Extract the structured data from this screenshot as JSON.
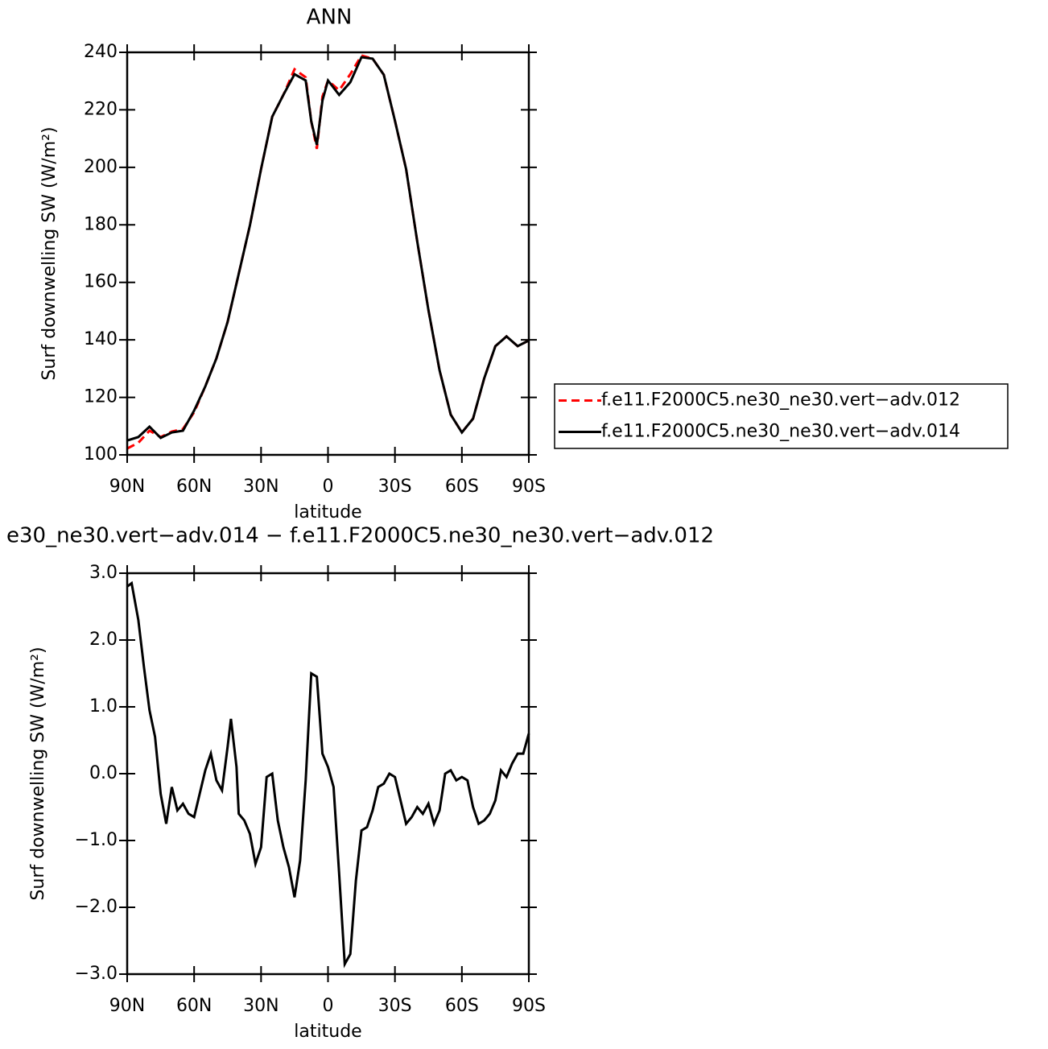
{
  "chart_data": [
    {
      "type": "line",
      "title": "ANN",
      "xlabel": "latitude",
      "ylabel": "Surf downwelling SW (W/m²)",
      "x": [
        90,
        85,
        80,
        75,
        70,
        65,
        60,
        55,
        50,
        45,
        40,
        35,
        30,
        25,
        20,
        15,
        10,
        7.5,
        5,
        2.5,
        0,
        -5,
        -10,
        -15,
        -20,
        -25,
        -30,
        -35,
        -40,
        -45,
        -50,
        -55,
        -60,
        -65,
        -70,
        -75,
        -80,
        -85,
        -90
      ],
      "series": [
        {
          "name": "f.e11.F2000C5.ne30_ne30.vert−adv.012",
          "color": "#ff0000",
          "linestyle": "dashed",
          "values": [
            102.2,
            104.2,
            108.4,
            106.2,
            108.1,
            109,
            114.8,
            123.8,
            133.6,
            146.2,
            163,
            179.8,
            199.4,
            217.6,
            225.2,
            234.1,
            231.3,
            216,
            206.4,
            224.6,
            230.2,
            226.8,
            232.4,
            238.9,
            237.8,
            232.2,
            216.2,
            199.4,
            174.2,
            150.4,
            129.4,
            114,
            107.8,
            112.6,
            126.6,
            137.8,
            141.2,
            137.8,
            139.8
          ]
        },
        {
          "name": "f.e11.F2000C5.ne30_ne30.vert−adv.014",
          "color": "#000000",
          "linestyle": "solid",
          "values": [
            105,
            106.2,
            109.8,
            105.9,
            107.8,
            108.4,
            115.4,
            123.8,
            133.6,
            146.2,
            163,
            179.8,
            199.4,
            217.6,
            225.2,
            232.4,
            230.2,
            216,
            207.8,
            223.2,
            230.2,
            225.2,
            229.6,
            238.3,
            237.8,
            232.2,
            216.2,
            199.4,
            174.2,
            150.4,
            129.4,
            114,
            107.8,
            112.6,
            126.6,
            137.8,
            141.2,
            137.8,
            139.8
          ]
        }
      ],
      "xlim": [
        90,
        -90
      ],
      "xticks": [
        {
          "value": 90,
          "label": "90N"
        },
        {
          "value": 60,
          "label": "60N"
        },
        {
          "value": 30,
          "label": "30N"
        },
        0,
        {
          "value": -30,
          "label": "30S"
        },
        {
          "value": -60,
          "label": "60S"
        },
        {
          "value": -90,
          "label": "90S"
        }
      ],
      "ylim": [
        100,
        240
      ],
      "yticks": [
        100,
        120,
        140,
        160,
        180,
        200,
        220,
        240
      ],
      "legend": "right"
    },
    {
      "type": "line",
      "title": "e30_ne30.vert−adv.014 − f.e11.F2000C5.ne30_ne30.vert−adv.012",
      "xlabel": "latitude",
      "ylabel": "Surf downwelling SW (W/m²)",
      "x": [
        90,
        88,
        85,
        82.5,
        80,
        77.5,
        75,
        72.5,
        70,
        67.5,
        65,
        62.5,
        60,
        57.5,
        55,
        52.5,
        50,
        47.5,
        45,
        43.5,
        41,
        40,
        37.5,
        35,
        32.5,
        30,
        27.5,
        25,
        22.5,
        20,
        17.5,
        15,
        12.5,
        10,
        7.5,
        5,
        2.5,
        0,
        -2.5,
        -5,
        -7.5,
        -10,
        -12.5,
        -15,
        -17.5,
        -20,
        -22.5,
        -25,
        -27.5,
        -30,
        -32.5,
        -35,
        -37.5,
        -40,
        -42.5,
        -45,
        -47.5,
        -50,
        -52.5,
        -55,
        -57.5,
        -60,
        -62.5,
        -65,
        -67.5,
        -70,
        -72.5,
        -75,
        -77.5,
        -80,
        -82.5,
        -85,
        -87.5,
        -90
      ],
      "series": [
        {
          "name": null,
          "color": "#000000",
          "linestyle": "solid",
          "values": [
            2.8,
            2.85,
            2.3,
            1.6,
            0.95,
            0.55,
            -0.3,
            -0.75,
            -0.2,
            -0.55,
            -0.45,
            -0.6,
            -0.65,
            -0.3,
            0.05,
            0.3,
            -0.1,
            -0.25,
            0.4,
            0.82,
            0.1,
            -0.6,
            -0.7,
            -0.9,
            -1.35,
            -1.1,
            -0.05,
            0,
            -0.7,
            -1.1,
            -1.4,
            -1.85,
            -1.3,
            -0.1,
            1.5,
            1.45,
            0.3,
            0.1,
            -0.2,
            -1.5,
            -2.85,
            -2.7,
            -1.6,
            -0.85,
            -0.8,
            -0.55,
            -0.2,
            -0.15,
            0,
            -0.05,
            -0.4,
            -0.75,
            -0.65,
            -0.5,
            -0.6,
            -0.45,
            -0.75,
            -0.55,
            0,
            0.05,
            -0.1,
            -0.05,
            -0.1,
            -0.5,
            -0.75,
            -0.7,
            -0.6,
            -0.4,
            0.05,
            -0.05,
            0.15,
            0.3,
            0.3,
            0.6
          ]
        }
      ],
      "xlim": [
        90,
        -90
      ],
      "xticks": [
        {
          "value": 90,
          "label": "90N"
        },
        {
          "value": 60,
          "label": "60N"
        },
        {
          "value": 30,
          "label": "30N"
        },
        0,
        {
          "value": -30,
          "label": "30S"
        },
        {
          "value": -60,
          "label": "60S"
        },
        {
          "value": -90,
          "label": "90S"
        }
      ],
      "ylim": [
        -3,
        3
      ],
      "yticks": [
        {
          "value": -3,
          "label": "−3.0"
        },
        {
          "value": -2,
          "label": "−2.0"
        },
        {
          "value": -1,
          "label": "−1.0"
        },
        {
          "value": 0,
          "label": "0.0"
        },
        {
          "value": 1,
          "label": "1.0"
        },
        {
          "value": 2,
          "label": "2.0"
        },
        {
          "value": 3,
          "label": "3.0"
        }
      ]
    }
  ]
}
